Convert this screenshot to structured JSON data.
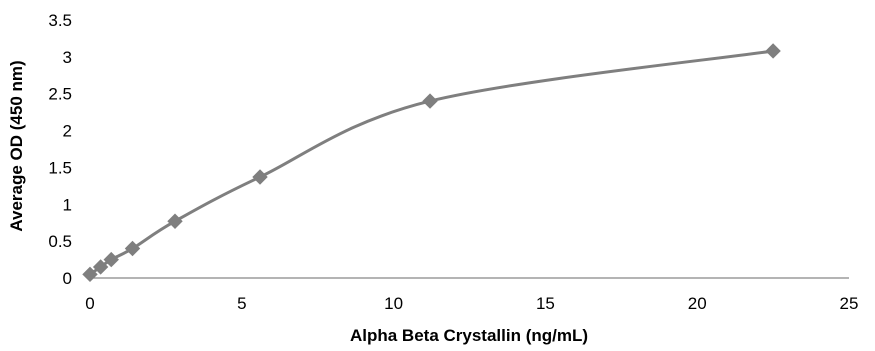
{
  "chart_data": {
    "type": "scatter",
    "title": "",
    "xlabel": "Alpha Beta Crystallin (ng/mL)",
    "ylabel": "Average OD (450 nm)",
    "xlim": [
      0,
      25
    ],
    "ylim": [
      0,
      3.5
    ],
    "x_ticks": [
      "0",
      "5",
      "10",
      "15",
      "20",
      "25"
    ],
    "y_ticks": [
      "0",
      "0.5",
      "1",
      "1.5",
      "2",
      "2.5",
      "3",
      "3.5"
    ],
    "grid": false,
    "legend": "none",
    "smooth_line": true,
    "marker": "diamond",
    "series": [
      {
        "color": "#7f7f7f",
        "x": [
          0,
          0.35,
          0.7,
          1.4,
          2.8,
          5.6,
          11.2,
          22.5
        ],
        "y": [
          0.05,
          0.15,
          0.25,
          0.4,
          0.77,
          1.37,
          2.4,
          3.08
        ]
      }
    ]
  }
}
